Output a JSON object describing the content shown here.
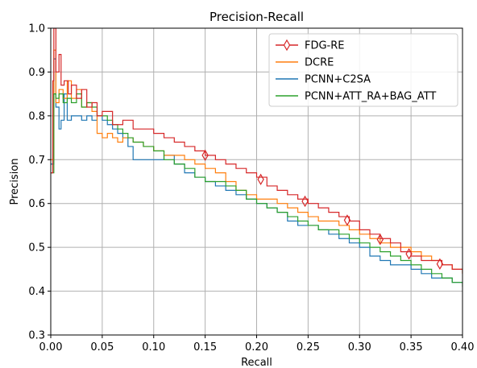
{
  "chart_data": {
    "type": "line",
    "title": "Precision-Recall",
    "xlabel": "Recall",
    "ylabel": "Precision",
    "xlim": [
      0.0,
      0.4
    ],
    "ylim": [
      0.3,
      1.0
    ],
    "xticks": [
      0.0,
      0.05,
      0.1,
      0.15,
      0.2,
      0.25,
      0.3,
      0.35,
      0.4
    ],
    "xtick_labels": [
      "0.00",
      "0.05",
      "0.10",
      "0.15",
      "0.20",
      "0.25",
      "0.30",
      "0.35",
      "0.40"
    ],
    "yticks": [
      0.3,
      0.4,
      0.5,
      0.6,
      0.7,
      0.8,
      0.9,
      1.0
    ],
    "ytick_labels": [
      "0.3",
      "0.4",
      "0.5",
      "0.6",
      "0.7",
      "0.8",
      "0.9",
      "1.0"
    ],
    "grid": true,
    "legend_position": "top-right",
    "series": [
      {
        "name": "FDG-RE",
        "color": "#d62728",
        "marker": "thin-diamond",
        "points": [
          [
            0.0,
            0.67
          ],
          [
            0.002,
            0.88
          ],
          [
            0.003,
            1.0
          ],
          [
            0.005,
            0.9
          ],
          [
            0.008,
            0.94
          ],
          [
            0.01,
            0.87
          ],
          [
            0.013,
            0.88
          ],
          [
            0.017,
            0.85
          ],
          [
            0.02,
            0.87
          ],
          [
            0.025,
            0.84
          ],
          [
            0.03,
            0.86
          ],
          [
            0.035,
            0.82
          ],
          [
            0.04,
            0.83
          ],
          [
            0.045,
            0.8
          ],
          [
            0.05,
            0.81
          ],
          [
            0.06,
            0.78
          ],
          [
            0.07,
            0.79
          ],
          [
            0.08,
            0.77
          ],
          [
            0.09,
            0.77
          ],
          [
            0.1,
            0.76
          ],
          [
            0.11,
            0.75
          ],
          [
            0.12,
            0.74
          ],
          [
            0.13,
            0.73
          ],
          [
            0.14,
            0.72
          ],
          [
            0.15,
            0.71
          ],
          [
            0.16,
            0.7
          ],
          [
            0.17,
            0.69
          ],
          [
            0.18,
            0.68
          ],
          [
            0.19,
            0.67
          ],
          [
            0.2,
            0.66
          ],
          [
            0.21,
            0.64
          ],
          [
            0.22,
            0.63
          ],
          [
            0.23,
            0.62
          ],
          [
            0.24,
            0.61
          ],
          [
            0.25,
            0.6
          ],
          [
            0.26,
            0.59
          ],
          [
            0.27,
            0.58
          ],
          [
            0.28,
            0.57
          ],
          [
            0.29,
            0.56
          ],
          [
            0.3,
            0.54
          ],
          [
            0.31,
            0.53
          ],
          [
            0.32,
            0.52
          ],
          [
            0.33,
            0.51
          ],
          [
            0.34,
            0.49
          ],
          [
            0.35,
            0.48
          ],
          [
            0.36,
            0.47
          ],
          [
            0.37,
            0.47
          ],
          [
            0.38,
            0.46
          ],
          [
            0.39,
            0.45
          ],
          [
            0.4,
            0.44
          ]
        ],
        "marker_points": [
          [
            0.15,
            0.71
          ],
          [
            0.204,
            0.655
          ],
          [
            0.247,
            0.605
          ],
          [
            0.288,
            0.562
          ],
          [
            0.32,
            0.518
          ],
          [
            0.348,
            0.485
          ],
          [
            0.378,
            0.462
          ]
        ]
      },
      {
        "name": "DCRE",
        "color": "#ff7f0e",
        "points": [
          [
            0.0,
            0.7
          ],
          [
            0.003,
            0.95
          ],
          [
            0.005,
            0.83
          ],
          [
            0.008,
            0.86
          ],
          [
            0.012,
            0.84
          ],
          [
            0.016,
            0.88
          ],
          [
            0.02,
            0.84
          ],
          [
            0.025,
            0.86
          ],
          [
            0.03,
            0.82
          ],
          [
            0.035,
            0.83
          ],
          [
            0.04,
            0.81
          ],
          [
            0.045,
            0.76
          ],
          [
            0.05,
            0.75
          ],
          [
            0.055,
            0.76
          ],
          [
            0.06,
            0.75
          ],
          [
            0.065,
            0.74
          ],
          [
            0.07,
            0.75
          ],
          [
            0.075,
            0.75
          ],
          [
            0.08,
            0.74
          ],
          [
            0.09,
            0.73
          ],
          [
            0.1,
            0.72
          ],
          [
            0.11,
            0.71
          ],
          [
            0.12,
            0.71
          ],
          [
            0.13,
            0.7
          ],
          [
            0.14,
            0.69
          ],
          [
            0.15,
            0.68
          ],
          [
            0.16,
            0.67
          ],
          [
            0.17,
            0.65
          ],
          [
            0.18,
            0.63
          ],
          [
            0.19,
            0.62
          ],
          [
            0.2,
            0.61
          ],
          [
            0.21,
            0.61
          ],
          [
            0.22,
            0.6
          ],
          [
            0.23,
            0.59
          ],
          [
            0.24,
            0.58
          ],
          [
            0.25,
            0.57
          ],
          [
            0.26,
            0.56
          ],
          [
            0.27,
            0.56
          ],
          [
            0.28,
            0.55
          ],
          [
            0.29,
            0.54
          ],
          [
            0.3,
            0.53
          ],
          [
            0.31,
            0.52
          ],
          [
            0.32,
            0.51
          ],
          [
            0.33,
            0.5
          ],
          [
            0.34,
            0.5
          ],
          [
            0.35,
            0.49
          ],
          [
            0.36,
            0.48
          ],
          [
            0.37,
            0.47
          ],
          [
            0.38,
            0.46
          ],
          [
            0.39,
            0.45
          ],
          [
            0.4,
            0.44
          ]
        ]
      },
      {
        "name": "PCNN+C2SA",
        "color": "#1f77b4",
        "points": [
          [
            0.0,
            0.69
          ],
          [
            0.003,
            0.93
          ],
          [
            0.005,
            0.82
          ],
          [
            0.008,
            0.77
          ],
          [
            0.01,
            0.79
          ],
          [
            0.013,
            0.85
          ],
          [
            0.016,
            0.79
          ],
          [
            0.02,
            0.8
          ],
          [
            0.025,
            0.8
          ],
          [
            0.03,
            0.79
          ],
          [
            0.035,
            0.8
          ],
          [
            0.04,
            0.79
          ],
          [
            0.045,
            0.8
          ],
          [
            0.05,
            0.79
          ],
          [
            0.055,
            0.78
          ],
          [
            0.06,
            0.77
          ],
          [
            0.065,
            0.76
          ],
          [
            0.07,
            0.75
          ],
          [
            0.075,
            0.73
          ],
          [
            0.08,
            0.7
          ],
          [
            0.09,
            0.7
          ],
          [
            0.1,
            0.7
          ],
          [
            0.11,
            0.71
          ],
          [
            0.12,
            0.69
          ],
          [
            0.13,
            0.67
          ],
          [
            0.14,
            0.66
          ],
          [
            0.15,
            0.65
          ],
          [
            0.16,
            0.64
          ],
          [
            0.17,
            0.63
          ],
          [
            0.18,
            0.62
          ],
          [
            0.19,
            0.61
          ],
          [
            0.2,
            0.6
          ],
          [
            0.21,
            0.59
          ],
          [
            0.22,
            0.58
          ],
          [
            0.23,
            0.56
          ],
          [
            0.24,
            0.55
          ],
          [
            0.25,
            0.55
          ],
          [
            0.26,
            0.54
          ],
          [
            0.27,
            0.53
          ],
          [
            0.28,
            0.52
          ],
          [
            0.29,
            0.51
          ],
          [
            0.3,
            0.5
          ],
          [
            0.31,
            0.48
          ],
          [
            0.32,
            0.47
          ],
          [
            0.33,
            0.46
          ],
          [
            0.34,
            0.46
          ],
          [
            0.35,
            0.45
          ],
          [
            0.36,
            0.44
          ],
          [
            0.37,
            0.43
          ],
          [
            0.38,
            0.43
          ],
          [
            0.39,
            0.42
          ],
          [
            0.4,
            0.42
          ]
        ]
      },
      {
        "name": "PCNN+ATT_RA+BAG_ATT",
        "color": "#2ca02c",
        "points": [
          [
            0.0,
            0.67
          ],
          [
            0.003,
            0.85
          ],
          [
            0.005,
            0.84
          ],
          [
            0.008,
            0.85
          ],
          [
            0.012,
            0.83
          ],
          [
            0.016,
            0.84
          ],
          [
            0.02,
            0.83
          ],
          [
            0.025,
            0.85
          ],
          [
            0.03,
            0.82
          ],
          [
            0.035,
            0.83
          ],
          [
            0.04,
            0.82
          ],
          [
            0.045,
            0.8
          ],
          [
            0.05,
            0.8
          ],
          [
            0.055,
            0.79
          ],
          [
            0.06,
            0.78
          ],
          [
            0.065,
            0.77
          ],
          [
            0.07,
            0.76
          ],
          [
            0.075,
            0.75
          ],
          [
            0.08,
            0.74
          ],
          [
            0.09,
            0.73
          ],
          [
            0.1,
            0.72
          ],
          [
            0.11,
            0.7
          ],
          [
            0.12,
            0.69
          ],
          [
            0.13,
            0.68
          ],
          [
            0.14,
            0.66
          ],
          [
            0.15,
            0.65
          ],
          [
            0.16,
            0.65
          ],
          [
            0.17,
            0.64
          ],
          [
            0.18,
            0.63
          ],
          [
            0.19,
            0.61
          ],
          [
            0.2,
            0.6
          ],
          [
            0.21,
            0.59
          ],
          [
            0.22,
            0.58
          ],
          [
            0.23,
            0.57
          ],
          [
            0.24,
            0.56
          ],
          [
            0.25,
            0.55
          ],
          [
            0.26,
            0.54
          ],
          [
            0.27,
            0.54
          ],
          [
            0.28,
            0.53
          ],
          [
            0.29,
            0.52
          ],
          [
            0.3,
            0.51
          ],
          [
            0.31,
            0.5
          ],
          [
            0.32,
            0.49
          ],
          [
            0.33,
            0.48
          ],
          [
            0.34,
            0.47
          ],
          [
            0.35,
            0.46
          ],
          [
            0.36,
            0.45
          ],
          [
            0.37,
            0.44
          ],
          [
            0.38,
            0.43
          ],
          [
            0.39,
            0.42
          ],
          [
            0.4,
            0.41
          ]
        ]
      }
    ]
  }
}
